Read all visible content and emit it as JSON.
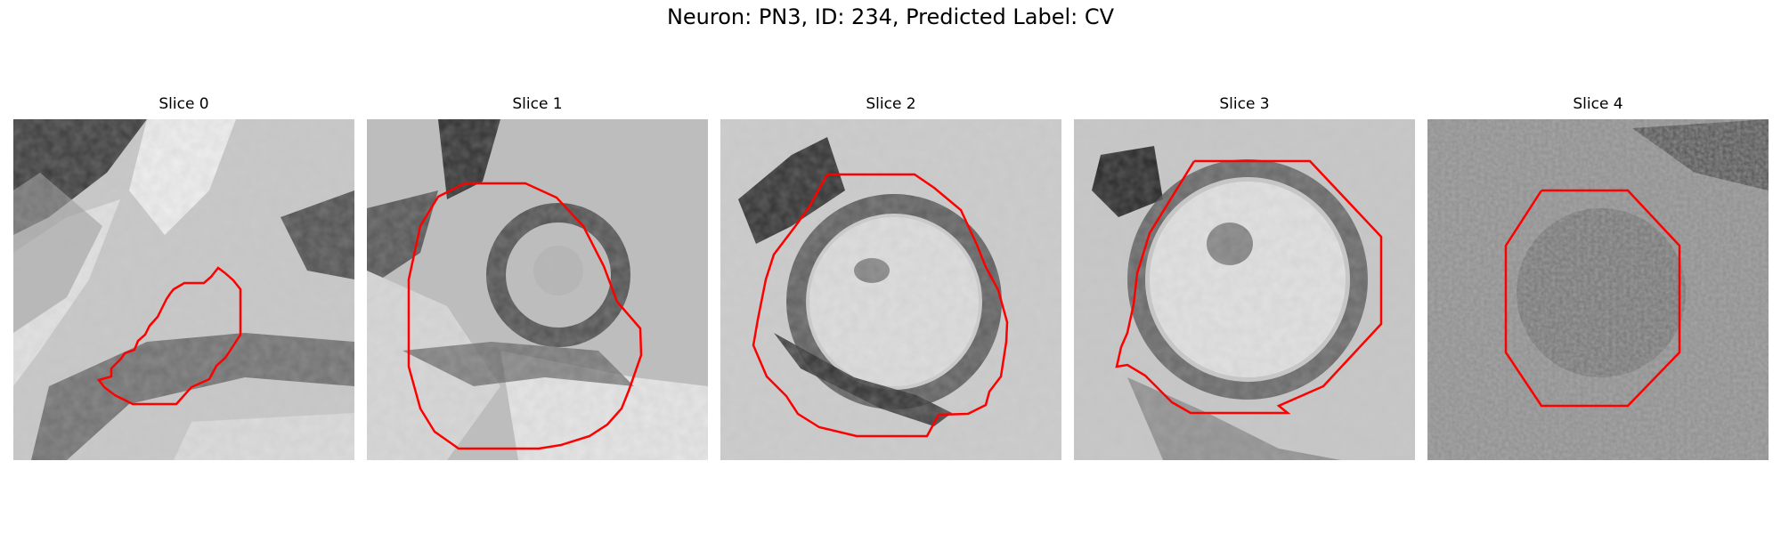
{
  "figure": {
    "title": "Neuron: PN3, ID: 234, Predicted Label: CV"
  },
  "colors": {
    "contour": "#ff0000",
    "background": "#ffffff"
  },
  "slices": [
    {
      "title": "Slice 0"
    },
    {
      "title": "Slice 1"
    },
    {
      "title": "Slice 2"
    },
    {
      "title": "Slice 3"
    },
    {
      "title": "Slice 4"
    }
  ]
}
